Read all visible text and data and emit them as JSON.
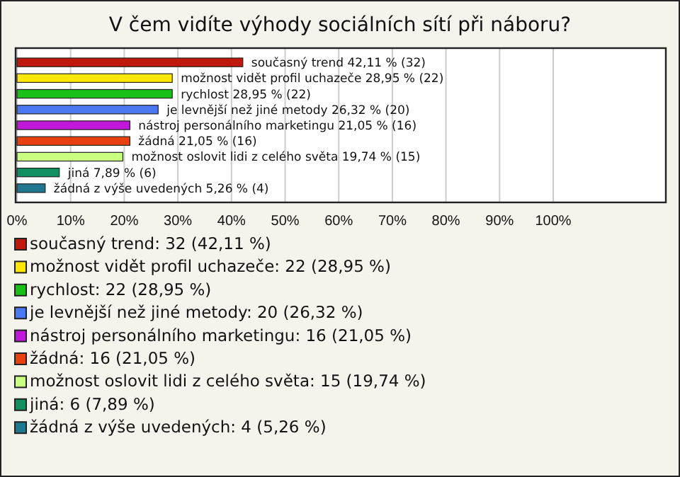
{
  "chart_data": {
    "type": "bar",
    "orientation": "horizontal",
    "title": "V čem vidíte výhody sociálních sítí při náboru?",
    "categories": [
      null,
      null,
      null,
      null,
      null,
      null,
      null,
      null,
      null
    ],
    "series": [
      {
        "name": "současný trend: 32 (42,11 %)",
        "color": "#c0180c",
        "values": [
          42.11,
          null,
          null,
          null,
          null,
          null,
          null,
          null,
          null
        ],
        "value_labels": [
          "současný trend 42,11 % (32)",
          null,
          null,
          null,
          null,
          null,
          null,
          null,
          null
        ]
      },
      {
        "name": "možnost vidět profil uchazeče: 22 (28,95 %)",
        "color": "#ffe800",
        "values": [
          null,
          28.95,
          null,
          null,
          null,
          null,
          null,
          null,
          null
        ],
        "value_labels": [
          null,
          "možnost vidět profil uchazeče 28,95 % (22)",
          null,
          null,
          null,
          null,
          null,
          null,
          null
        ]
      },
      {
        "name": "rychlost: 22 (28,95 %)",
        "color": "#18c018",
        "values": [
          null,
          null,
          28.95,
          null,
          null,
          null,
          null,
          null,
          null
        ],
        "value_labels": [
          null,
          null,
          "rychlost 28,95 % (22)",
          null,
          null,
          null,
          null,
          null,
          null
        ]
      },
      {
        "name": "je levnější než jiné metody: 20 (26,32 %)",
        "color": "#4a78f0",
        "values": [
          null,
          null,
          null,
          26.32,
          null,
          null,
          null,
          null,
          null
        ],
        "value_labels": [
          null,
          null,
          null,
          "je levnější než jiné metody 26,32 % (20)",
          null,
          null,
          null,
          null,
          null
        ]
      },
      {
        "name": "nástroj personálního marketingu: 16 (21,05 %)",
        "color": "#c018d8",
        "values": [
          null,
          null,
          null,
          null,
          21.05,
          null,
          null,
          null,
          null
        ],
        "value_labels": [
          null,
          null,
          null,
          null,
          "nástroj personálního marketingu 21,05 % (16)",
          null,
          null,
          null,
          null
        ]
      },
      {
        "name": "žádná: 16 (21,05 %)",
        "color": "#e84010",
        "values": [
          null,
          null,
          null,
          null,
          null,
          21.05,
          null,
          null,
          null
        ],
        "value_labels": [
          null,
          null,
          null,
          null,
          null,
          "žádná 21,05 % (16)",
          null,
          null,
          null
        ]
      },
      {
        "name": "možnost oslovit lidi z celého světa: 15 (19,74 %)",
        "color": "#c8ff80",
        "values": [
          null,
          null,
          null,
          null,
          null,
          null,
          19.74,
          null,
          null
        ],
        "value_labels": [
          null,
          null,
          null,
          null,
          null,
          null,
          "možnost oslovit lidi z celého světa 19,74 % (15)",
          null,
          null
        ]
      },
      {
        "name": "jiná: 6 (7,89 %)",
        "color": "#109060",
        "values": [
          null,
          null,
          null,
          null,
          null,
          null,
          null,
          7.89,
          null
        ],
        "value_labels": [
          null,
          null,
          null,
          null,
          null,
          null,
          null,
          "jiná 7,89 % (6)",
          null
        ]
      },
      {
        "name": "žádná z výše uvedených: 4 (5,26 %)",
        "color": "#207890",
        "values": [
          null,
          null,
          null,
          null,
          null,
          null,
          null,
          null,
          5.26
        ],
        "value_labels": [
          null,
          null,
          null,
          null,
          null,
          null,
          null,
          null,
          "žádná z výše uvedených 5,26 % (4)"
        ]
      }
    ],
    "xlim": [
      0,
      121
    ],
    "xticks": [
      {
        "value": 0,
        "label": "0%"
      },
      {
        "value": 10,
        "label": "10%"
      },
      {
        "value": 20,
        "label": "20%"
      },
      {
        "value": 30,
        "label": "30%"
      },
      {
        "value": 40,
        "label": "40%"
      },
      {
        "value": 50,
        "label": "50%"
      },
      {
        "value": 60,
        "label": "60%"
      },
      {
        "value": 70,
        "label": "70%"
      },
      {
        "value": 80,
        "label": "80%"
      },
      {
        "value": 90,
        "label": "90%"
      },
      {
        "value": 100,
        "label": "100%"
      }
    ],
    "grid": "x",
    "legend": "bottom"
  }
}
